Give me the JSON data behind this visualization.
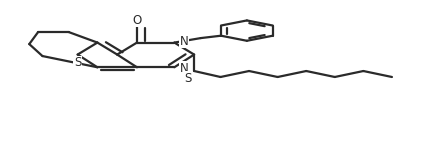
{
  "background_color": "#ffffff",
  "line_color": "#2a2a2a",
  "line_width": 1.6,
  "figsize": [
    4.41,
    1.51
  ],
  "dpi": 100,
  "xlim": [
    0.0,
    1.0
  ],
  "ylim": [
    0.0,
    1.0
  ]
}
